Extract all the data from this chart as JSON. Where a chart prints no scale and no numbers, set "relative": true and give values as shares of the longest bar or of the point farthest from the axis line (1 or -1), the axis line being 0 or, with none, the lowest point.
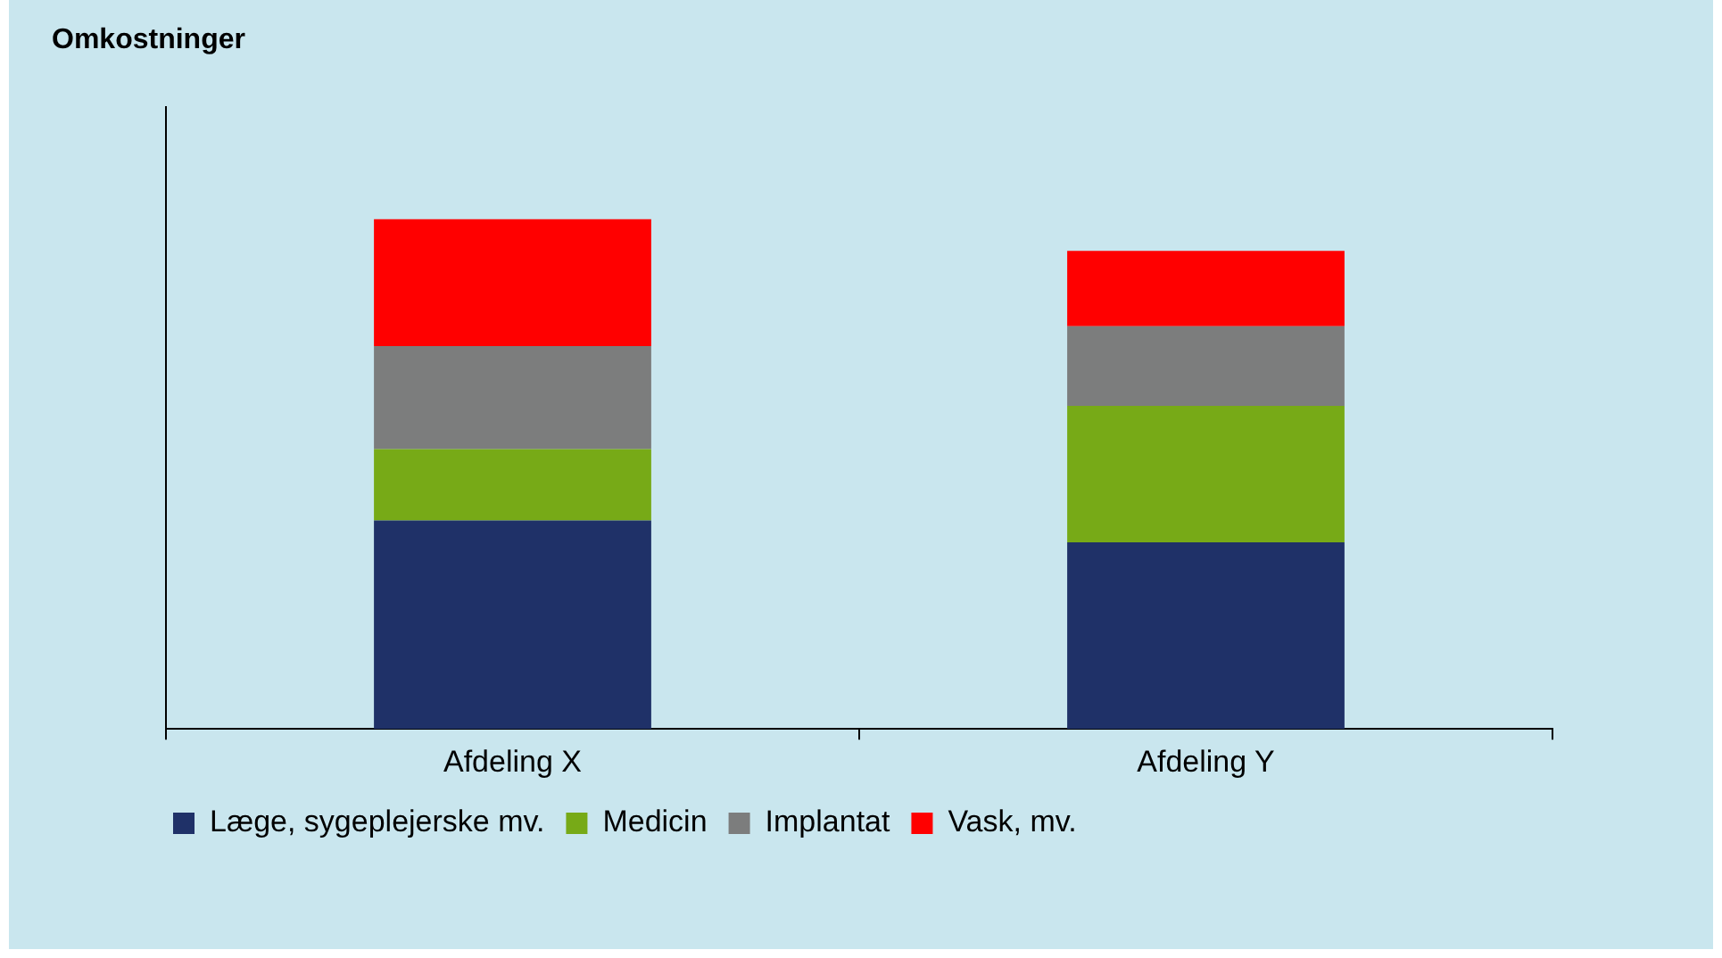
{
  "chart_data": {
    "type": "bar",
    "title": "Omkostninger",
    "categories": [
      "Afdeling X",
      "Afdeling Y"
    ],
    "stacked": true,
    "relative": true,
    "grid": false,
    "legend": "bottom",
    "series": [
      {
        "name": "Læge, sygeplejerske mv.",
        "color": "#1f3168",
        "values": [
          0.409,
          0.366
        ]
      },
      {
        "name": "Medicin",
        "color": "#77aa17",
        "values": [
          0.14,
          0.268
        ]
      },
      {
        "name": "Implantat",
        "color": "#7c7d7d",
        "values": [
          0.202,
          0.156
        ]
      },
      {
        "name": "Vask, mv.",
        "color": "#ff0000",
        "values": [
          0.249,
          0.148
        ]
      }
    ]
  }
}
